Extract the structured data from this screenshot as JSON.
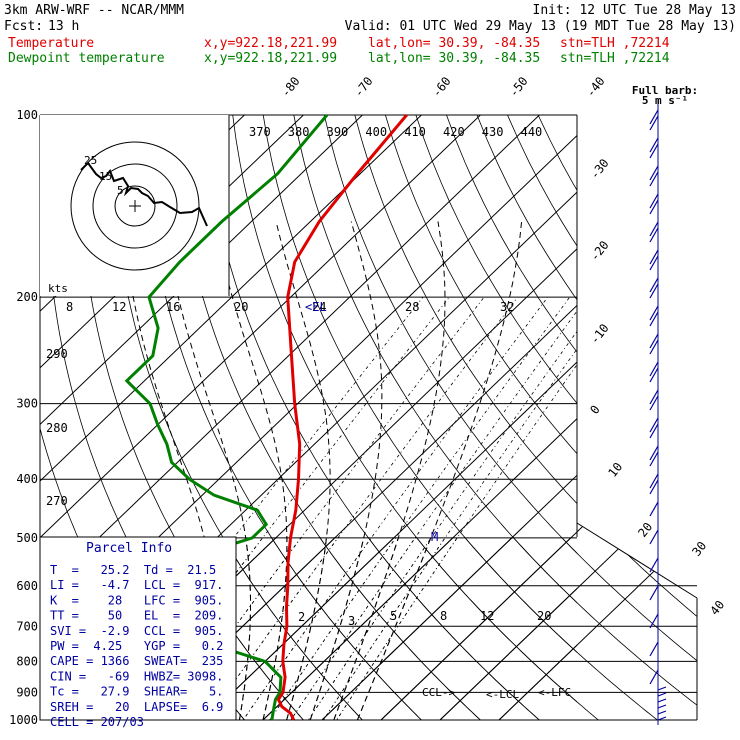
{
  "header": {
    "model": "3km ARW-WRF -- NCAR/MMM",
    "init": "Init: 12 UTC Tue 28 May 13",
    "fcst_label": "Fcst:",
    "fcst_value": "13 h",
    "valid": "Valid: 01 UTC Wed 29 May 13 (19 MDT Tue 28 May 13)",
    "temp_label": "Temperature",
    "dew_label": "Dewpoint temperature",
    "xy": "x,y=922.18,221.99",
    "latlon": "lat,lon= 30.39, -84.35",
    "stn": "stn=TLH ,72214"
  },
  "full_barb": {
    "line1": "Full barb:",
    "line2": "5 m s⁻¹"
  },
  "hodograph": {
    "ring_labels": [
      "5",
      "15",
      "25"
    ],
    "kts_label": "kts"
  },
  "markers": {
    "el": "<EL",
    "m": "M",
    "ccl": "CCL->",
    "lcl": "<-LCL",
    "lfc": "<-LFC"
  },
  "parcel_info": {
    "title": "Parcel Info",
    "rows": [
      "T  =   25.2  Td =  21.5",
      "LI =   -4.7  LCL =  917.",
      "K  =    28   LFC =  905.",
      "TT =    50   EL  =  209.",
      "SVI =  -2.9  CCL =  905.",
      "PW =  4.25   YGP =   0.2",
      "CAPE = 1366  SWEAT=  235",
      "CIN =   -69  HWBZ= 3098.",
      "Tc =   27.9  SHEAR=   5.",
      "SREH =   20  LAPSE=  6.9",
      "CELL = 207/03"
    ]
  },
  "colors": {
    "temperature": "#e00000",
    "dewpoint": "#008000",
    "barbs": "#0000a0",
    "grid": "#000000"
  },
  "chart_data": {
    "type": "line",
    "y_axis": {
      "scale": "log-pressure",
      "unit": "hPa",
      "range": [
        1000,
        100
      ],
      "tick_labels": [
        "100",
        "200",
        "300",
        "400",
        "500",
        "600",
        "700",
        "800",
        "900",
        "1000"
      ]
    },
    "x_axis": {
      "scale": "skewed temperature",
      "unit": "deg C",
      "range_at_1000hPa": [
        -13,
        40
      ]
    },
    "isotherm_labels": [
      "-80",
      "-70",
      "-60",
      "-50",
      "-40",
      "-30",
      "-20",
      "-10",
      "0",
      "10",
      "20",
      "30",
      "40"
    ],
    "theta_labels": [
      "370",
      "380",
      "390",
      "400",
      "410",
      "420",
      "430",
      "440"
    ],
    "mixing_ratio_labels": [
      "8",
      "12",
      "16",
      "20",
      "24",
      "28",
      "32"
    ],
    "mixing_ratio_labels_low": [
      "2",
      "3",
      "5",
      "8",
      "12",
      "20"
    ],
    "left_labels": [
      "290",
      "280",
      "270"
    ],
    "series": [
      {
        "name": "Temperature",
        "points": [
          [
            1000,
            25.2
          ],
          [
            975,
            23.5
          ],
          [
            950,
            20.8
          ],
          [
            925,
            19.0
          ],
          [
            900,
            18.5
          ],
          [
            850,
            16.2
          ],
          [
            800,
            13.0
          ],
          [
            750,
            10.2
          ],
          [
            700,
            7.5
          ],
          [
            650,
            4.0
          ],
          [
            600,
            0.5
          ],
          [
            550,
            -3.5
          ],
          [
            500,
            -7.5
          ],
          [
            450,
            -11.5
          ],
          [
            400,
            -16.5
          ],
          [
            350,
            -22.5
          ],
          [
            300,
            -30.5
          ],
          [
            250,
            -39.5
          ],
          [
            200,
            -50.5
          ],
          [
            175,
            -55.5
          ],
          [
            150,
            -58.5
          ],
          [
            125,
            -60.5
          ],
          [
            100,
            -62.5
          ]
        ]
      },
      {
        "name": "Dewpoint temperature",
        "points": [
          [
            1000,
            21.5
          ],
          [
            975,
            20.5
          ],
          [
            950,
            19.5
          ],
          [
            925,
            18.5
          ],
          [
            900,
            18.0
          ],
          [
            850,
            15.5
          ],
          [
            800,
            10.0
          ],
          [
            750,
            -2.0
          ],
          [
            700,
            -12.0
          ],
          [
            650,
            -13.0
          ],
          [
            600,
            -31.0
          ],
          [
            550,
            -23.0
          ],
          [
            500,
            -14.0
          ],
          [
            475,
            -14.0
          ],
          [
            450,
            -18.0
          ],
          [
            425,
            -28.0
          ],
          [
            400,
            -35.0
          ],
          [
            375,
            -41.0
          ],
          [
            350,
            -45.0
          ],
          [
            325,
            -50.0
          ],
          [
            300,
            -55.0
          ],
          [
            275,
            -63.0
          ],
          [
            250,
            -63.0
          ],
          [
            225,
            -67.0
          ],
          [
            200,
            -74.0
          ],
          [
            175,
            -75.0
          ],
          [
            150,
            -75.0
          ],
          [
            125,
            -74.0
          ],
          [
            100,
            -76.0
          ]
        ]
      }
    ]
  }
}
